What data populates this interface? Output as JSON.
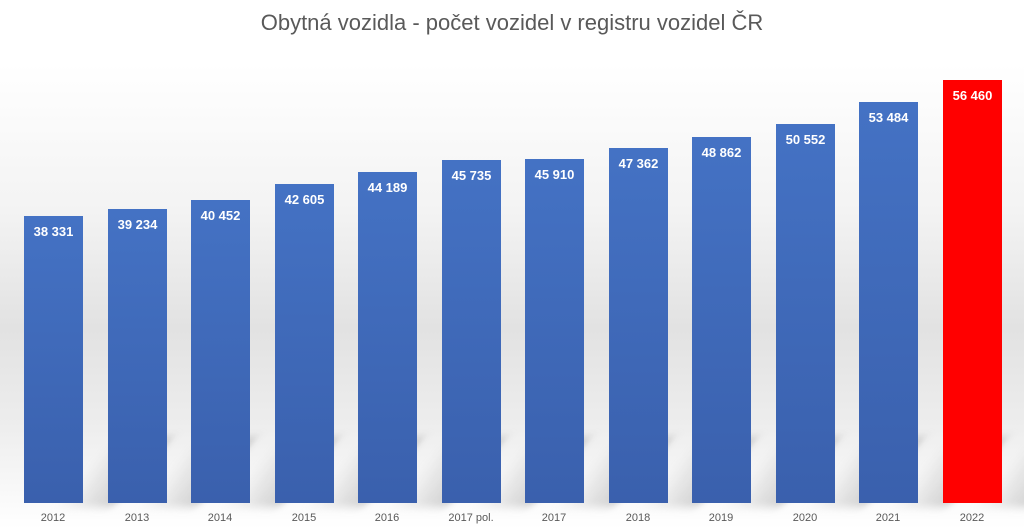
{
  "chart_data": {
    "type": "bar",
    "title": "Obytná vozidla - počet vozidel v registru vozidel ČR",
    "categories": [
      "2012",
      "2013",
      "2014",
      "2015",
      "2016",
      "2017 pol.",
      "2017",
      "2018",
      "2019",
      "2020",
      "2021",
      "2022"
    ],
    "values": [
      38331,
      39234,
      40452,
      42605,
      44189,
      45735,
      45910,
      47362,
      48862,
      50552,
      53484,
      56460
    ],
    "labels": [
      "38 331",
      "39 234",
      "40 452",
      "42 605",
      "44 189",
      "45 735",
      "45 910",
      "47 362",
      "48 862",
      "50 552",
      "53 484",
      "56 460"
    ],
    "xlabel": "",
    "ylabel": "",
    "ylim": [
      0,
      60000
    ],
    "grid": false,
    "legend": "none",
    "colors": {
      "default": "#4472c4",
      "highlight": "#ff0000",
      "highlight_index": 11
    }
  }
}
